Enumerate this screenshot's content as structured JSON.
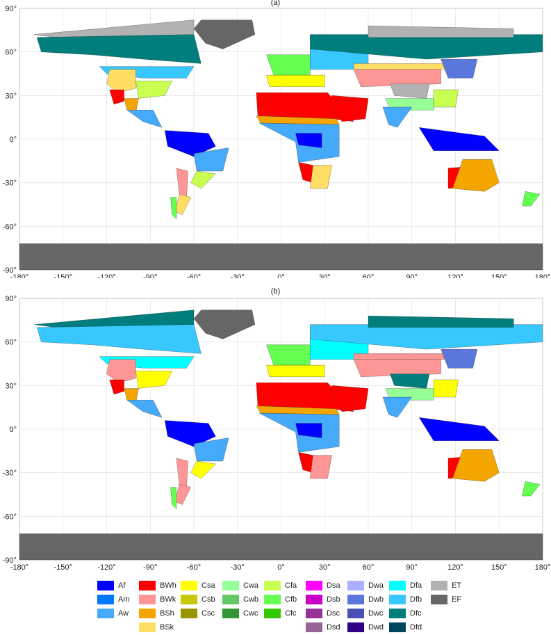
{
  "panels": [
    {
      "label": "(a)"
    },
    {
      "label": "(b)"
    }
  ],
  "axes": {
    "x_ticks": [
      "-180°",
      "-150°",
      "-120°",
      "-90°",
      "-60°",
      "-30°",
      "0°",
      "30°",
      "60°",
      "90°",
      "120°",
      "150°",
      "180°"
    ],
    "y_ticks": [
      "90°",
      "60°",
      "30°",
      "0°",
      "-30°",
      "-60°",
      "-90°"
    ],
    "xlim": [
      -180,
      180
    ],
    "ylim": [
      -90,
      90
    ],
    "grid": true
  },
  "legend": [
    {
      "label": "Af",
      "color": "#0000ff"
    },
    {
      "label": "Am",
      "color": "#0078ff"
    },
    {
      "label": "Aw",
      "color": "#46aafa"
    },
    {
      "label": "BWh",
      "color": "#ff0000"
    },
    {
      "label": "BWk",
      "color": "#ff9696"
    },
    {
      "label": "BSh",
      "color": "#f5a500"
    },
    {
      "label": "BSk",
      "color": "#ffdc64"
    },
    {
      "label": "Csa",
      "color": "#ffff00"
    },
    {
      "label": "Csb",
      "color": "#c8c800"
    },
    {
      "label": "Csc",
      "color": "#969600"
    },
    {
      "label": "Cwa",
      "color": "#96ff96"
    },
    {
      "label": "Cwb",
      "color": "#64c864"
    },
    {
      "label": "Cwc",
      "color": "#329632"
    },
    {
      "label": "Cfa",
      "color": "#c8ff50"
    },
    {
      "label": "Cfb",
      "color": "#64ff50"
    },
    {
      "label": "Cfc",
      "color": "#32c800"
    },
    {
      "label": "Dsa",
      "color": "#ff00ff"
    },
    {
      "label": "Dsb",
      "color": "#c800c8"
    },
    {
      "label": "Dsc",
      "color": "#963296"
    },
    {
      "label": "Dsd",
      "color": "#966496"
    },
    {
      "label": "Dwa",
      "color": "#aaafff"
    },
    {
      "label": "Dwb",
      "color": "#5a78dc"
    },
    {
      "label": "Dwc",
      "color": "#4b50b4"
    },
    {
      "label": "Dwd",
      "color": "#320087"
    },
    {
      "label": "Dfa",
      "color": "#00ffff"
    },
    {
      "label": "Dfb",
      "color": "#37c8ff"
    },
    {
      "label": "Dfc",
      "color": "#007d7d"
    },
    {
      "label": "Dfd",
      "color": "#00465f"
    },
    {
      "label": "ET",
      "color": "#b2b2b2"
    },
    {
      "label": "EF",
      "color": "#666666"
    }
  ]
}
